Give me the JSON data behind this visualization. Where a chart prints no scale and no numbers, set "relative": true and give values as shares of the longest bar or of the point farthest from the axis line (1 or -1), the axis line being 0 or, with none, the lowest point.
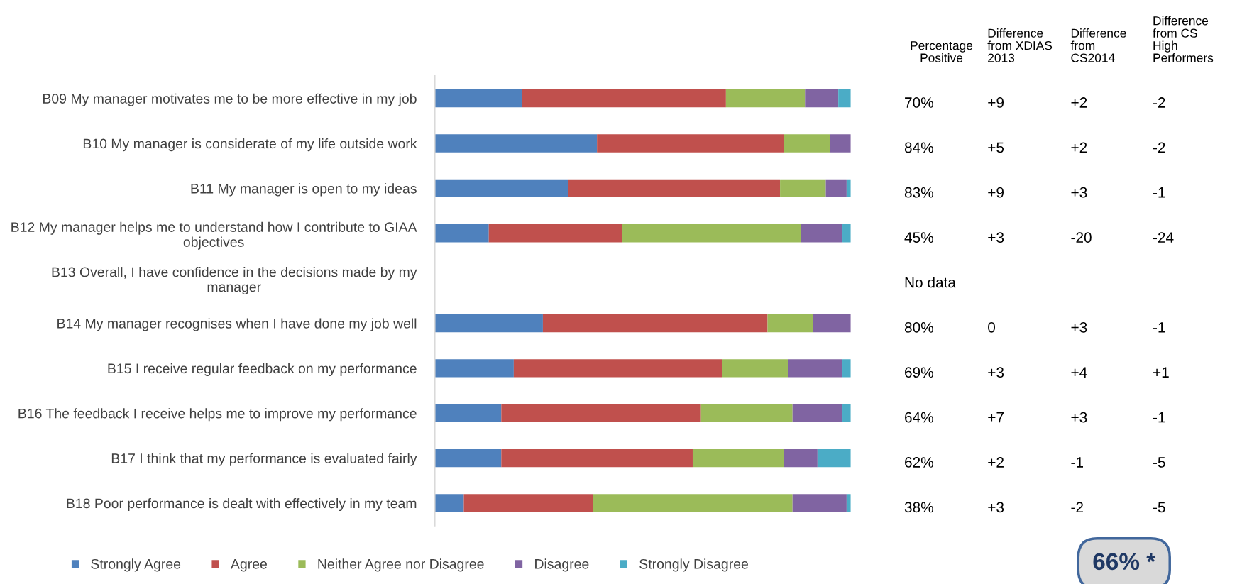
{
  "chart_data": {
    "type": "bar",
    "orientation": "horizontal",
    "stacked": true,
    "relative": true,
    "legend": "bottom",
    "grid": false,
    "categories": [
      "B09 My manager motivates me to be more effective in my job",
      "B10 My manager is considerate of my life outside work",
      "B11 My manager is open to my ideas",
      "B12 My manager helps me to understand how I contribute to GIAA objectives",
      "B13 Overall, I have confidence in the decisions made by my manager",
      "B14 My manager recognises when I have done my job well",
      "B15 I receive regular feedback on my performance",
      "B16 The feedback I receive helps me to improve my performance",
      "B17 I think that my performance is evaluated fairly",
      "B18 Poor performance is dealt with effectively in my team"
    ],
    "series": [
      {
        "name": "Strongly Agree",
        "color": "#4f81bd",
        "values": [
          0.21,
          0.39,
          0.32,
          0.13,
          null,
          0.26,
          0.19,
          0.16,
          0.16,
          0.07
        ]
      },
      {
        "name": "Agree",
        "color": "#c0504d",
        "values": [
          0.49,
          0.45,
          0.51,
          0.32,
          null,
          0.54,
          0.5,
          0.48,
          0.46,
          0.31
        ]
      },
      {
        "name": "Neither Agree nor Disagree",
        "color": "#9bbb59",
        "values": [
          0.19,
          0.11,
          0.11,
          0.43,
          null,
          0.11,
          0.16,
          0.22,
          0.22,
          0.48
        ]
      },
      {
        "name": "Disagree",
        "color": "#8064a2",
        "values": [
          0.08,
          0.05,
          0.05,
          0.1,
          null,
          0.09,
          0.13,
          0.12,
          0.08,
          0.13
        ]
      },
      {
        "name": "Strongly Disagree",
        "color": "#4bacc6",
        "values": [
          0.03,
          0,
          0.01,
          0.02,
          null,
          0,
          0.02,
          0.02,
          0.08,
          0.01
        ]
      }
    ],
    "annotations": [
      "Percentage\nPositive",
      "Difference\nfrom XDIAS\n2013",
      "Difference\nfrom\nCS2014",
      "Difference\nfrom CS\nHigh\nPerformers",
      "70%\t+9\t+2\t-2",
      "84%\t+5\t+2\t-2",
      "83%\t+9\t+3\t-1",
      "45%\t+3\t-20\t-24",
      "No data",
      "80%\t0\t+3\t-1",
      "69%\t+3\t+4\t+1",
      "64%\t+7\t+3\t-1",
      "62%\t+2\t-1\t-5",
      "38%\t+3\t-2\t-5",
      "66% *"
    ]
  }
}
